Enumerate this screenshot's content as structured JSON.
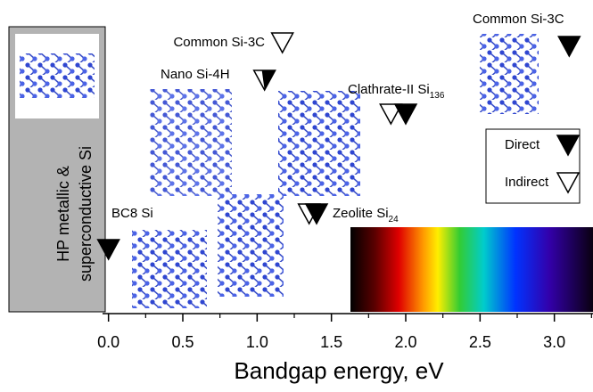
{
  "chart_data": {
    "type": "marker-axis",
    "x_label": "Bandgap energy, eV",
    "xlim": [
      -0.04,
      3.26
    ],
    "xticks": [
      {
        "value": 0,
        "label": "0.0"
      },
      {
        "value": 0.5,
        "label": "0.5"
      },
      {
        "value": 1,
        "label": "1.0"
      },
      {
        "value": 1.5,
        "label": "1.5"
      },
      {
        "value": 2,
        "label": "2.0"
      },
      {
        "value": 2.5,
        "label": "2.5"
      },
      {
        "value": 3,
        "label": "3.0"
      }
    ],
    "xminorticks": [
      0.25,
      0.75,
      1.25,
      1.75,
      2.25,
      2.75,
      3.25
    ],
    "color": "#000000",
    "points": [
      {
        "x": 0.0,
        "marker": "filled"
      },
      {
        "x": 1.05,
        "marker": "half"
      },
      {
        "x": 1.17,
        "marker": "open"
      },
      {
        "x": 1.35,
        "marker": "open"
      },
      {
        "x": 1.4,
        "marker": "filled"
      },
      {
        "x": 1.9,
        "marker": "open"
      },
      {
        "x": 2.0,
        "marker": "filled"
      },
      {
        "x": 3.1,
        "marker": "filled"
      }
    ],
    "annotations": [
      {
        "text": "HP metallic &"
      },
      {
        "text": "superconductive Si"
      },
      {
        "text": "Common Si-3C"
      },
      {
        "text": "Nano Si-4H"
      },
      {
        "text": "Clathrate-II Si",
        "sub": "136"
      },
      {
        "text": "Zeolite Si",
        "sub": "24"
      },
      {
        "text": "BC8 Si"
      },
      {
        "text": "Common Si-3C"
      }
    ],
    "legend": [
      {
        "name": "Direct",
        "marker": "filled"
      },
      {
        "name": "Indirect",
        "marker": "open"
      }
    ]
  }
}
